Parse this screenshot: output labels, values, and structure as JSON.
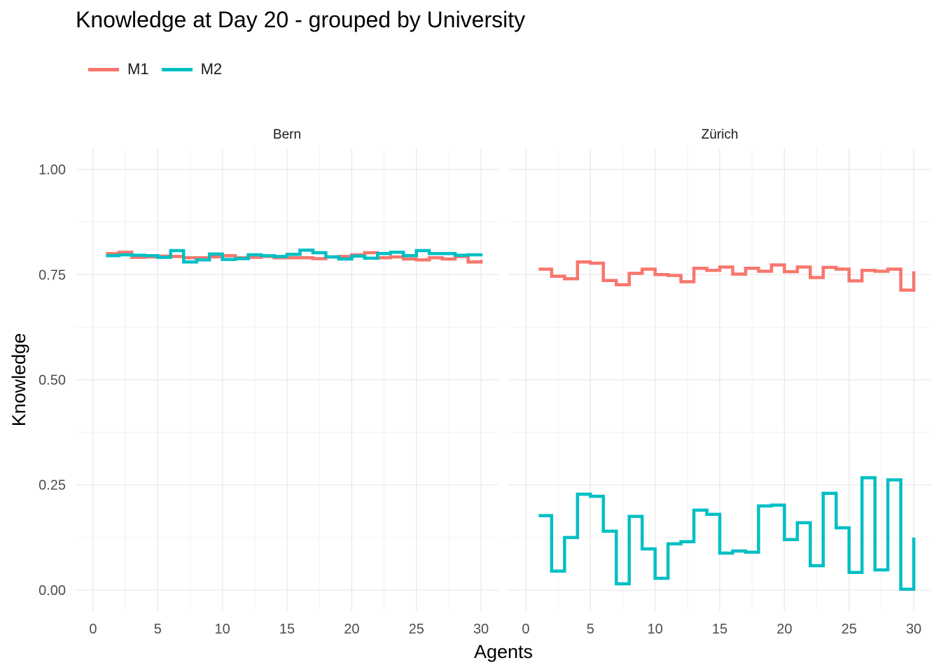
{
  "chart_data": {
    "type": "line",
    "title": "Knowledge at Day 20 - grouped by University",
    "xlabel": "Agents",
    "ylabel": "Knowledge",
    "xlim": [
      0,
      30
    ],
    "ylim": [
      0,
      1
    ],
    "x_ticks": [
      0,
      5,
      10,
      15,
      20,
      25,
      30
    ],
    "x_tick_labels": [
      "0",
      "5",
      "10",
      "15",
      "20",
      "25",
      "30"
    ],
    "y_ticks": [
      0,
      0.25,
      0.5,
      0.75,
      1
    ],
    "y_tick_labels": [
      "0.00",
      "0.25",
      "0.50",
      "0.75",
      "1.00"
    ],
    "step": "hv",
    "legend": {
      "position": "top-left",
      "entries": [
        "M1",
        "M2"
      ]
    },
    "colors": {
      "M1": "#F8766D",
      "M2": "#00BFC4"
    },
    "panels": [
      {
        "name": "Bern",
        "series": [
          {
            "name": "M1",
            "values": [
              0.8,
              0.803,
              0.791,
              0.792,
              0.794,
              0.793,
              0.79,
              0.79,
              0.792,
              0.795,
              0.79,
              0.791,
              0.793,
              0.79,
              0.79,
              0.79,
              0.788,
              0.792,
              0.793,
              0.797,
              0.802,
              0.79,
              0.792,
              0.787,
              0.785,
              0.79,
              0.787,
              0.793,
              0.78,
              0.785
            ]
          },
          {
            "name": "M2",
            "values": [
              0.795,
              0.797,
              0.796,
              0.795,
              0.791,
              0.807,
              0.78,
              0.785,
              0.799,
              0.786,
              0.788,
              0.797,
              0.795,
              0.793,
              0.798,
              0.808,
              0.802,
              0.792,
              0.787,
              0.794,
              0.789,
              0.8,
              0.803,
              0.795,
              0.807,
              0.8,
              0.8,
              0.796,
              0.797,
              0.8
            ]
          }
        ]
      },
      {
        "name": "Zürich",
        "series": [
          {
            "name": "M1",
            "values": [
              0.763,
              0.746,
              0.74,
              0.78,
              0.777,
              0.736,
              0.726,
              0.753,
              0.763,
              0.75,
              0.748,
              0.733,
              0.765,
              0.76,
              0.768,
              0.751,
              0.765,
              0.758,
              0.773,
              0.757,
              0.768,
              0.743,
              0.767,
              0.763,
              0.735,
              0.76,
              0.758,
              0.763,
              0.713,
              0.758
            ]
          },
          {
            "name": "M2",
            "values": [
              0.177,
              0.045,
              0.125,
              0.228,
              0.223,
              0.14,
              0.015,
              0.175,
              0.098,
              0.028,
              0.11,
              0.115,
              0.19,
              0.18,
              0.088,
              0.093,
              0.09,
              0.2,
              0.202,
              0.12,
              0.16,
              0.058,
              0.23,
              0.148,
              0.042,
              0.267,
              0.048,
              0.262,
              0.002,
              0.125
            ]
          }
        ]
      }
    ]
  }
}
